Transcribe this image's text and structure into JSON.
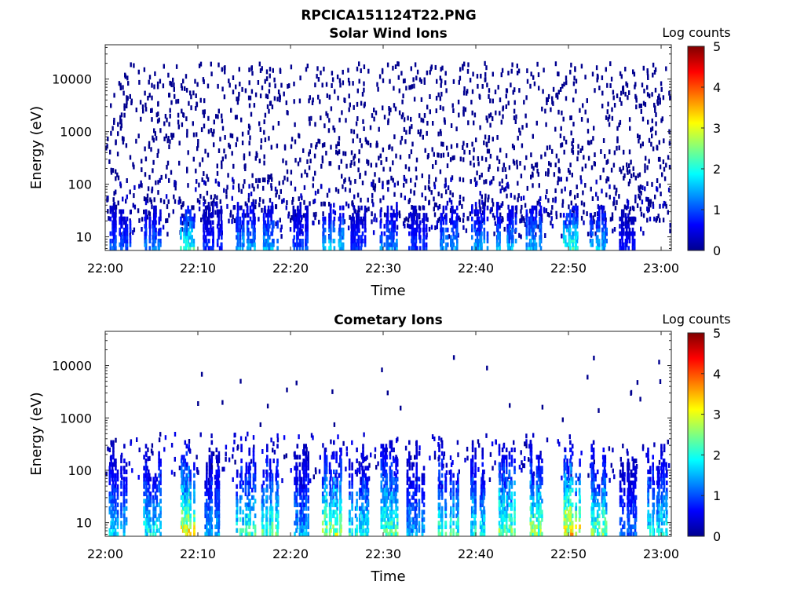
{
  "figure_title": "RPCICA151124T22.PNG",
  "colormap": [
    "#00008f",
    "#0000ff",
    "#0080ff",
    "#00ffff",
    "#80ff80",
    "#ffff00",
    "#ff8000",
    "#ff0000",
    "#800000"
  ],
  "chart_data": [
    {
      "type": "heatmap",
      "title": "Solar Wind Ions",
      "xlabel": "Time",
      "ylabel": "Energy (eV)",
      "x_ticks": [
        "22:00",
        "22:10",
        "22:20",
        "22:30",
        "22:40",
        "22:50",
        "23:00"
      ],
      "x_tick_minutes": [
        0,
        10,
        20,
        30,
        40,
        50,
        60
      ],
      "xlim_minutes": [
        0,
        61.1
      ],
      "y_scale": "log",
      "ylim": [
        5.5,
        45000
      ],
      "y_ticks": [
        "10",
        "100",
        "1000",
        "10000"
      ],
      "y_tick_values": [
        10,
        100,
        1000,
        10000
      ],
      "colorbar": {
        "label": "Log counts",
        "range": [
          0,
          5
        ],
        "ticks": [
          "0",
          "1",
          "2",
          "3",
          "4",
          "5"
        ]
      },
      "bursts_minutes": [
        1.5,
        5.0,
        8.7,
        11.6,
        15.0,
        17.8,
        21.0,
        24.5,
        27.3,
        30.5,
        33.6,
        37.0,
        40.2,
        43.3,
        46.2,
        50.2,
        53.2,
        56.2
      ],
      "burst_peak_log_counts": [
        1.3,
        1.5,
        2.6,
        1.0,
        1.8,
        1.8,
        1.2,
        2.0,
        1.1,
        1.6,
        1.1,
        1.6,
        1.8,
        1.8,
        2.0,
        2.6,
        2.0,
        0.8
      ],
      "background": "sparse single counts (log counts ≈ 0) across 10 – 20000 eV"
    },
    {
      "type": "heatmap",
      "title": "Cometary Ions",
      "xlabel": "Time",
      "ylabel": "Energy (eV)",
      "x_ticks": [
        "22:00",
        "22:10",
        "22:20",
        "22:30",
        "22:40",
        "22:50",
        "23:00"
      ],
      "x_tick_minutes": [
        0,
        10,
        20,
        30,
        40,
        50,
        60
      ],
      "xlim_minutes": [
        0,
        61.1
      ],
      "y_scale": "log",
      "ylim": [
        5.5,
        45000
      ],
      "y_ticks": [
        "10",
        "100",
        "1000",
        "10000"
      ],
      "y_tick_values": [
        10,
        100,
        1000,
        10000
      ],
      "colorbar": {
        "label": "Log counts",
        "range": [
          0,
          5
        ],
        "ticks": [
          "0",
          "1",
          "2",
          "3",
          "4",
          "5"
        ]
      },
      "bursts_minutes": [
        1.5,
        5.0,
        8.7,
        11.6,
        15.0,
        17.8,
        21.0,
        24.5,
        27.3,
        30.5,
        33.6,
        37.0,
        40.2,
        43.3,
        46.2,
        50.2,
        53.2,
        56.2,
        59.5
      ],
      "burst_peak_log_counts": [
        2.0,
        2.4,
        3.8,
        1.8,
        2.6,
        2.8,
        1.8,
        3.2,
        2.4,
        2.8,
        1.8,
        2.6,
        2.4,
        3.0,
        3.2,
        3.9,
        3.0,
        1.4,
        2.4
      ],
      "background": "mostly empty above 500 eV with isolated single counts"
    }
  ]
}
